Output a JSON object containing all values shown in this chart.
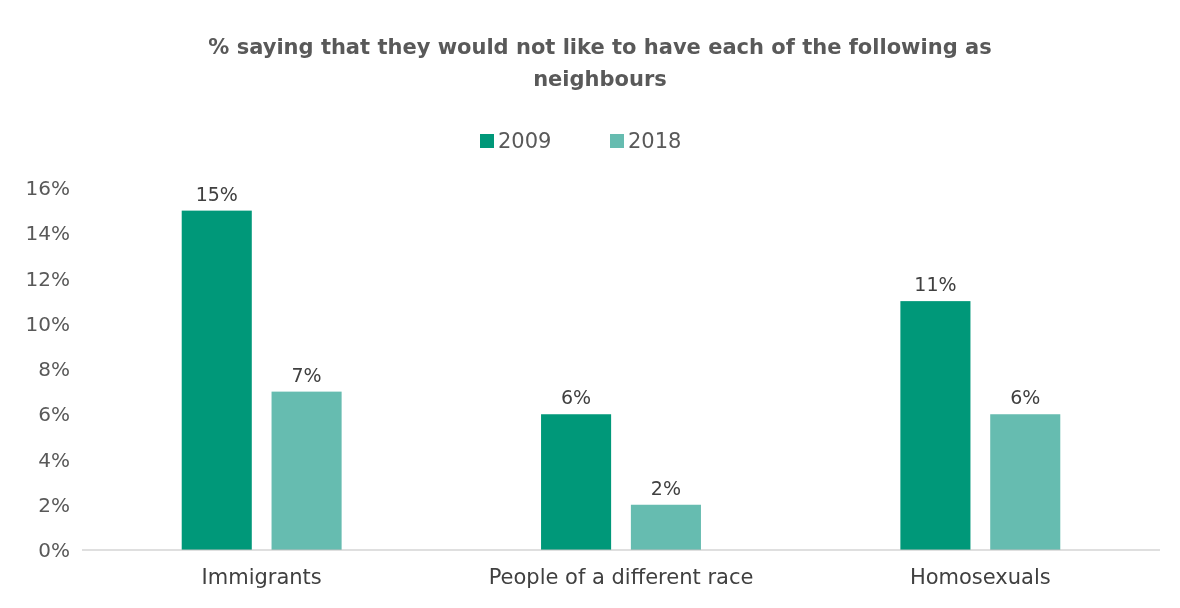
{
  "chart_data": {
    "type": "bar",
    "title": "% saying that they would not like to have each of the following as neighbours",
    "categories": [
      "Immigrants",
      "People of a different race",
      "Homosexuals"
    ],
    "series": [
      {
        "name": "2009",
        "color": "#009879",
        "values": [
          15,
          6,
          11
        ],
        "value_labels": [
          "15%",
          "6%",
          "11%"
        ]
      },
      {
        "name": "2018",
        "color": "#66bcb0",
        "values": [
          7,
          2,
          6
        ],
        "value_labels": [
          "7%",
          "2%",
          "6%"
        ]
      }
    ],
    "ylim": [
      0,
      16
    ],
    "yticks": [
      {
        "value": 0,
        "label": "0%"
      },
      {
        "value": 2,
        "label": "2%"
      },
      {
        "value": 4,
        "label": "4%"
      },
      {
        "value": 6,
        "label": "6%"
      },
      {
        "value": 8,
        "label": "8%"
      },
      {
        "value": 10,
        "label": "10%"
      },
      {
        "value": 12,
        "label": "12%"
      },
      {
        "value": 14,
        "label": "14%"
      },
      {
        "value": 16,
        "label": "16%"
      }
    ],
    "legend": "top"
  }
}
